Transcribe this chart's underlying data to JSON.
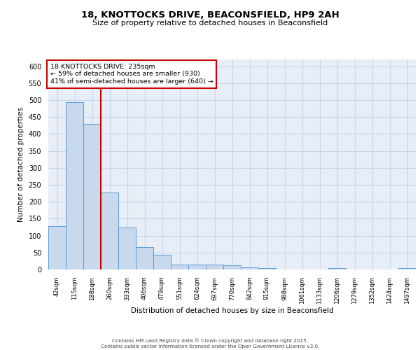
{
  "title1": "18, KNOTTOCKS DRIVE, BEACONSFIELD, HP9 2AH",
  "title2": "Size of property relative to detached houses in Beaconsfield",
  "xlabel": "Distribution of detached houses by size in Beaconsfield",
  "ylabel": "Number of detached properties",
  "bar_labels": [
    "42sqm",
    "115sqm",
    "188sqm",
    "260sqm",
    "333sqm",
    "406sqm",
    "479sqm",
    "551sqm",
    "624sqm",
    "697sqm",
    "770sqm",
    "842sqm",
    "915sqm",
    "988sqm",
    "1061sqm",
    "1133sqm",
    "1206sqm",
    "1279sqm",
    "1352sqm",
    "1424sqm",
    "1497sqm"
  ],
  "bar_values": [
    128,
    493,
    430,
    228,
    124,
    67,
    44,
    15,
    15,
    15,
    12,
    6,
    5,
    0,
    0,
    0,
    5,
    0,
    0,
    0,
    4
  ],
  "bar_color": "#c8d9ee",
  "bar_edge_color": "#5b9bd5",
  "grid_color": "#c8d4e8",
  "background_color": "#e8eef8",
  "red_line_x": 2.5,
  "annotation_text": "18 KNOTTOCKS DRIVE: 235sqm\n← 59% of detached houses are smaller (930)\n41% of semi-detached houses are larger (640) →",
  "annotation_box_color": "#ffffff",
  "annotation_border_color": "#cc0000",
  "footer": "Contains HM Land Registry data © Crown copyright and database right 2025.\nContains public sector information licensed under the Open Government Licence v3.0.",
  "ylim": [
    0,
    620
  ],
  "yticks": [
    0,
    50,
    100,
    150,
    200,
    250,
    300,
    350,
    400,
    450,
    500,
    550,
    600
  ]
}
